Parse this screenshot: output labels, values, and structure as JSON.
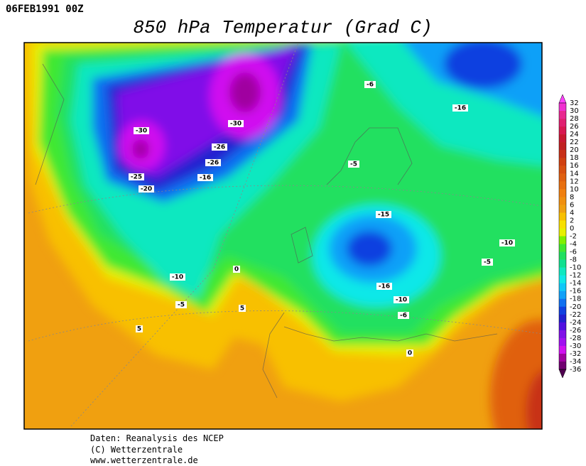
{
  "header": {
    "date": "06FEB1991 00Z",
    "title": "850 hPa Temperatur (Grad C)"
  },
  "map": {
    "contour_labels": [
      "-30",
      "-30",
      "-26",
      "-26",
      "-25",
      "-20",
      "-16",
      "-6",
      "-16",
      "-5",
      "-15",
      "-10",
      "-5",
      "-10",
      "0",
      "-5",
      "5",
      "5",
      "-16",
      "-10",
      "-6",
      "0"
    ]
  },
  "colorbar": {
    "labels": [
      32,
      30,
      28,
      26,
      24,
      22,
      20,
      18,
      16,
      14,
      12,
      10,
      8,
      6,
      4,
      2,
      0,
      -2,
      -4,
      -6,
      -8,
      -10,
      -12,
      -14,
      -16,
      -18,
      -20,
      -22,
      -24,
      -26,
      -28,
      -30,
      -32,
      -34,
      -36
    ],
    "colors": [
      "#ff40ff",
      "#f030d0",
      "#e82890",
      "#e02070",
      "#d81850",
      "#c81830",
      "#c02020",
      "#c83018",
      "#d04010",
      "#d85010",
      "#e06010",
      "#e87010",
      "#f08010",
      "#f09010",
      "#f0a010",
      "#f8c000",
      "#f8e000",
      "#e8f000",
      "#80f000",
      "#40e830",
      "#20e060",
      "#10e090",
      "#10e8c0",
      "#10e8e8",
      "#10c8f8",
      "#10a0f8",
      "#1070f0",
      "#1040e0",
      "#2020d0",
      "#5010e0",
      "#8010e8",
      "#a010f0",
      "#d010f0",
      "#a000a0",
      "#700070",
      "#500050"
    ]
  },
  "footer": {
    "lines": [
      "Daten: Reanalysis des NCEP",
      "(C) Wetterzentrale",
      "www.wetterzentrale.de"
    ]
  }
}
